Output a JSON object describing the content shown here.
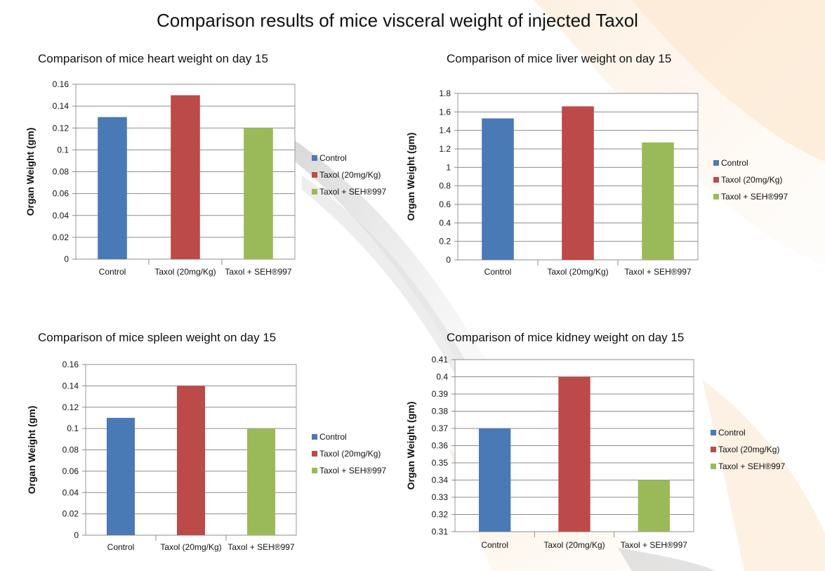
{
  "page": {
    "title": "Comparison results of mice visceral weight of injected Taxol"
  },
  "colors": {
    "control": "#4a7ab5",
    "taxol": "#bb4a48",
    "combo": "#9aba5a"
  },
  "chart_data": [
    {
      "type": "bar",
      "title": "Comparison of mice heart weight on day 15",
      "ylabel": "Organ Weight (gm)",
      "categories": [
        "Control",
        "Taxol (20mg/Kg)",
        "Taxol + SEH®997"
      ],
      "values": [
        0.13,
        0.15,
        0.12
      ],
      "ylim": [
        0,
        0.16
      ],
      "yticks": [
        "0",
        "0.02",
        "0.04",
        "0.06",
        "0.08",
        "0.1",
        "0.12",
        "0.14",
        "0.16"
      ],
      "grid": true,
      "legend": [
        "Control",
        "Taxol (20mg/Kg)",
        "Taxol + SEH®997"
      ],
      "legend_position": "right"
    },
    {
      "type": "bar",
      "title": "Comparison of mice liver weight on day 15",
      "ylabel": "Organ Weight (gm)",
      "categories": [
        "Control",
        "Taxol (20mg/Kg)",
        "Taxol + SEH®997"
      ],
      "values": [
        1.53,
        1.66,
        1.27
      ],
      "ylim": [
        0,
        1.8
      ],
      "yticks": [
        "0",
        "0.2",
        "0.4",
        "0.6",
        "0.8",
        "1",
        "1.2",
        "1.4",
        "1.6",
        "1.8"
      ],
      "grid": true,
      "legend": [
        "Control",
        "Taxol (20mg/Kg)",
        "Taxol + SEH®997"
      ],
      "legend_position": "right"
    },
    {
      "type": "bar",
      "title": "Comparison of mice spleen weight on day 15",
      "ylabel": "Organ Weight (gm)",
      "categories": [
        "Control",
        "Taxol (20mg/Kg)",
        "Taxol + SEH®997"
      ],
      "values": [
        0.11,
        0.14,
        0.1
      ],
      "ylim": [
        0,
        0.16
      ],
      "yticks": [
        "0",
        "0.02",
        "0.04",
        "0.06",
        "0.08",
        "0.1",
        "0.12",
        "0.14",
        "0.16"
      ],
      "grid": true,
      "legend": [
        "Control",
        "Taxol (20mg/Kg)",
        "Taxol + SEH®997"
      ],
      "legend_position": "right"
    },
    {
      "type": "bar",
      "title": "Comparison of mice kidney weight on day 15",
      "ylabel": "Organ Weight (gm)",
      "categories": [
        "Control",
        "Taxol (20mg/Kg)",
        "Taxol + SEH®997"
      ],
      "values": [
        0.37,
        0.4,
        0.34
      ],
      "ylim": [
        0.31,
        0.41
      ],
      "yticks": [
        "0.31",
        "0.32",
        "0.33",
        "0.34",
        "0.35",
        "0.36",
        "0.37",
        "0.38",
        "0.39",
        "0.4",
        "0.41"
      ],
      "grid": true,
      "legend": [
        "Control",
        "Taxol (20mg/Kg)",
        "Taxol + SEH®997"
      ],
      "legend_position": "right"
    }
  ]
}
